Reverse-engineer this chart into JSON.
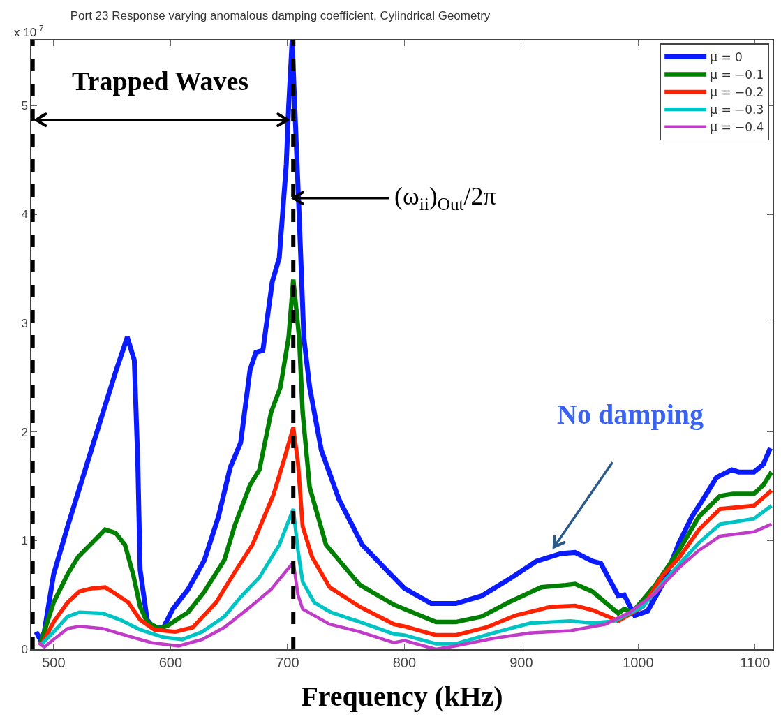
{
  "chart_data": {
    "type": "line",
    "title": "Port 23 Response varying anomalous damping coefficient, Cylindrical Geometry",
    "xlabel": "Frequency (kHz)",
    "annotations": [
      "x 10$^{-7}$",
      "Trapped Waves",
      {
        "text": "(ω$_{ii}$)$_{Out}$/2π",
        "x": 705,
        "y": 4.15
      },
      "No damping"
    ],
    "xlim": [
      481,
      1115
    ],
    "xticks": [
      500,
      600,
      700,
      800,
      900,
      1000,
      1100
    ],
    "ylim": [
      0,
      5.6
    ],
    "yticks": [
      0,
      1,
      2,
      3,
      4,
      5
    ],
    "grid": false,
    "legend": "top right",
    "line_style": "solid",
    "marker": "none",
    "ref_lines": [
      {
        "axis": "x",
        "value": 482,
        "color": "#000000",
        "line_style": "dashed"
      },
      {
        "axis": "x",
        "value": 705,
        "color": "#000000",
        "line_style": "dashed"
      }
    ],
    "series": [
      {
        "name": "μ = 0",
        "color": "#0a1cff",
        "x": [
          485,
          489,
          492,
          500,
          512,
          533,
          553,
          563,
          569,
          572,
          574,
          580,
          586,
          594,
          602,
          615,
          629,
          641,
          651,
          660,
          668,
          673,
          679,
          687,
          693,
          699,
          701,
          704,
          710,
          714,
          719,
          729,
          744,
          764,
          781,
          800,
          823,
          844,
          866,
          889,
          913,
          934,
          946,
          961,
          968,
          983,
          988,
          997,
          1008,
          1021,
          1035,
          1046,
          1055,
          1067,
          1080,
          1086,
          1099,
          1107,
          1113
        ],
        "values": [
          0.16,
          0.08,
          0.16,
          0.69,
          1.13,
          1.86,
          2.55,
          2.87,
          2.66,
          1.72,
          0.73,
          0.27,
          0.19,
          0.2,
          0.37,
          0.55,
          0.82,
          1.22,
          1.67,
          1.9,
          2.57,
          2.73,
          2.75,
          3.38,
          3.6,
          4.46,
          4.99,
          5.6,
          4.0,
          2.87,
          2.41,
          1.83,
          1.38,
          0.96,
          0.77,
          0.56,
          0.42,
          0.42,
          0.49,
          0.64,
          0.81,
          0.88,
          0.89,
          0.81,
          0.79,
          0.49,
          0.5,
          0.31,
          0.35,
          0.6,
          0.98,
          1.22,
          1.37,
          1.58,
          1.65,
          1.63,
          1.63,
          1.7,
          1.85
        ]
      },
      {
        "name": "μ = −0.1",
        "color": "#008000",
        "x": [
          489,
          500,
          512,
          521,
          533,
          544,
          553,
          561,
          568,
          574,
          580,
          590,
          598,
          615,
          629,
          646,
          655,
          668,
          676,
          686,
          694,
          701,
          705,
          710,
          713,
          719,
          733,
          762,
          791,
          800,
          827,
          844,
          866,
          891,
          917,
          938,
          946,
          961,
          983,
          988,
          995,
          1014,
          1035,
          1052,
          1070,
          1081,
          1099,
          1107,
          1114
        ],
        "values": [
          0.06,
          0.43,
          0.69,
          0.85,
          0.98,
          1.1,
          1.07,
          0.96,
          0.69,
          0.39,
          0.25,
          0.19,
          0.22,
          0.34,
          0.53,
          0.82,
          1.14,
          1.51,
          1.65,
          2.18,
          2.41,
          2.87,
          3.4,
          2.87,
          2.18,
          1.49,
          0.96,
          0.59,
          0.41,
          0.37,
          0.25,
          0.25,
          0.3,
          0.44,
          0.57,
          0.59,
          0.6,
          0.53,
          0.33,
          0.37,
          0.34,
          0.58,
          0.91,
          1.22,
          1.41,
          1.43,
          1.43,
          1.51,
          1.63
        ]
      },
      {
        "name": "μ = −0.2",
        "color": "#ff2200",
        "x": [
          490,
          500,
          512,
          522,
          533,
          544,
          553,
          564,
          574,
          586,
          604,
          619,
          639,
          655,
          670,
          688,
          697,
          705,
          709,
          713,
          721,
          736,
          762,
          791,
          800,
          827,
          844,
          870,
          895,
          925,
          946,
          961,
          983,
          1004,
          1021,
          1035,
          1052,
          1070,
          1099,
          1114
        ],
        "values": [
          0.05,
          0.25,
          0.43,
          0.53,
          0.56,
          0.57,
          0.51,
          0.43,
          0.27,
          0.18,
          0.16,
          0.2,
          0.43,
          0.71,
          0.96,
          1.42,
          1.74,
          2.04,
          1.72,
          1.13,
          0.85,
          0.57,
          0.39,
          0.23,
          0.21,
          0.13,
          0.13,
          0.2,
          0.31,
          0.39,
          0.4,
          0.36,
          0.26,
          0.39,
          0.68,
          0.84,
          1.1,
          1.29,
          1.32,
          1.46
        ]
      },
      {
        "name": "μ = −0.3",
        "color": "#00c4c4",
        "x": [
          490,
          500,
          512,
          522,
          542,
          557,
          574,
          594,
          610,
          627,
          646,
          660,
          676,
          693,
          705,
          709,
          713,
          723,
          737,
          762,
          791,
          800,
          827,
          844,
          876,
          908,
          942,
          961,
          980,
          1004,
          1025,
          1052,
          1070,
          1099,
          1114
        ],
        "values": [
          0.05,
          0.16,
          0.3,
          0.34,
          0.33,
          0.27,
          0.18,
          0.11,
          0.09,
          0.16,
          0.3,
          0.48,
          0.66,
          0.96,
          1.29,
          0.91,
          0.62,
          0.43,
          0.34,
          0.25,
          0.14,
          0.13,
          0.05,
          0.05,
          0.15,
          0.24,
          0.26,
          0.24,
          0.26,
          0.39,
          0.66,
          0.98,
          1.15,
          1.2,
          1.32
        ]
      },
      {
        "name": "μ = −0.4",
        "color": "#c03cc8",
        "x": [
          487,
          492,
          500,
          512,
          522,
          542,
          564,
          584,
          607,
          627,
          646,
          666,
          686,
          705,
          709,
          713,
          736,
          762,
          791,
          800,
          827,
          844,
          876,
          908,
          942,
          972,
          993,
          1014,
          1035,
          1052,
          1070,
          1099,
          1114
        ],
        "values": [
          0.06,
          0.02,
          0.09,
          0.19,
          0.21,
          0.19,
          0.12,
          0.06,
          0.03,
          0.09,
          0.2,
          0.37,
          0.55,
          0.8,
          0.5,
          0.37,
          0.23,
          0.16,
          0.06,
          0.08,
          0.0,
          0.03,
          0.1,
          0.15,
          0.17,
          0.23,
          0.34,
          0.51,
          0.75,
          0.91,
          1.04,
          1.08,
          1.15
        ]
      }
    ]
  }
}
